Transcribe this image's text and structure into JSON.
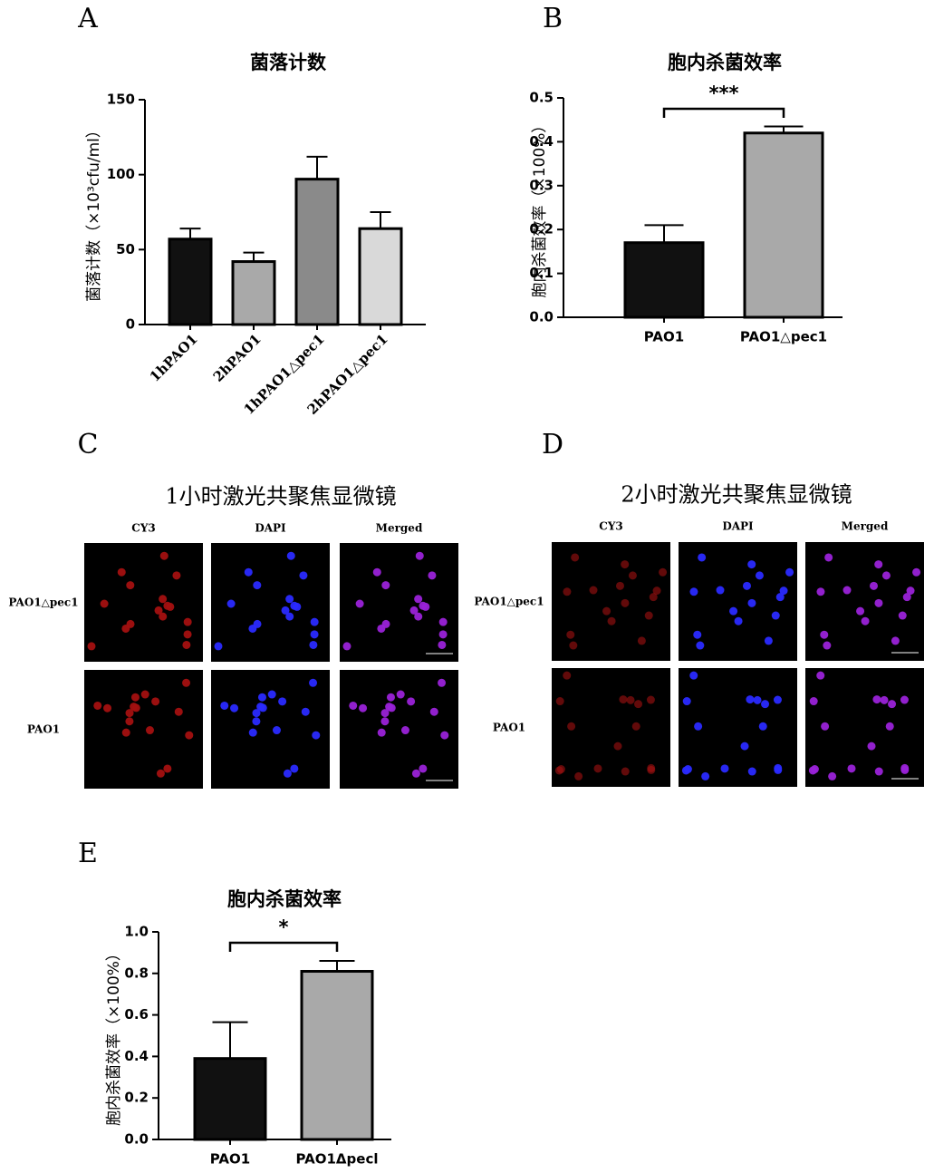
{
  "chart_data": [
    {
      "type": "bar",
      "panel": "A",
      "title": "菌落计数",
      "y_label": "菌落计数（×10³cfu/ml）",
      "categories": [
        "1hPAO1",
        "2hPAO1",
        "1hPAO1△pec1",
        "2hPAO1△pec1"
      ],
      "values": [
        57,
        42,
        97,
        64
      ],
      "errors": [
        7,
        6,
        15,
        11
      ],
      "colors": [
        "#111111",
        "#a9a9a9",
        "#8a8a8a",
        "#d9d9d9"
      ],
      "ylim": [
        0,
        150
      ],
      "yticks": [
        0,
        50,
        100,
        150
      ]
    },
    {
      "type": "bar",
      "panel": "B",
      "title": "胞内杀菌效率",
      "y_label": "胞内杀菌效率（×100%）",
      "categories": [
        "PAO1",
        "PAO1△pec1"
      ],
      "values": [
        0.17,
        0.42
      ],
      "errors": [
        0.04,
        0.015
      ],
      "colors": [
        "#111111",
        "#a9a9a9"
      ],
      "significance": "***",
      "ylim": [
        0,
        0.5
      ],
      "yticks": [
        {
          "value": 0,
          "label": "0.0"
        },
        0.1,
        0.2,
        0.3,
        0.4,
        0.5
      ]
    },
    {
      "type": "bar",
      "panel": "E",
      "title": "胞内杀菌效率",
      "y_label": "胞内杀菌效率（×100%）",
      "categories": [
        "PAO1",
        "PAO1Δpecl"
      ],
      "values": [
        0.39,
        0.81
      ],
      "errors": [
        0.175,
        0.05
      ],
      "colors": [
        "#111111",
        "#a9a9a9"
      ],
      "significance": "*",
      "ylim": [
        0,
        1
      ],
      "yticks": [
        {
          "value": 0,
          "label": "0.0"
        },
        0.2,
        0.4,
        0.6,
        0.8,
        {
          "value": 1,
          "label": "1.0"
        }
      ]
    }
  ],
  "microscopy": [
    {
      "panel": "C",
      "title": "1小时激光共聚焦显微镜",
      "columns": [
        "CY3",
        "DAPI",
        "Merged"
      ],
      "rows": [
        "PAO1△pec1",
        "PAO1"
      ]
    },
    {
      "panel": "D",
      "title": "2小时激光共聚焦显微镜",
      "columns": [
        "CY3",
        "DAPI",
        "Merged"
      ],
      "rows": [
        "PAO1△pec1",
        "PAO1"
      ]
    }
  ]
}
